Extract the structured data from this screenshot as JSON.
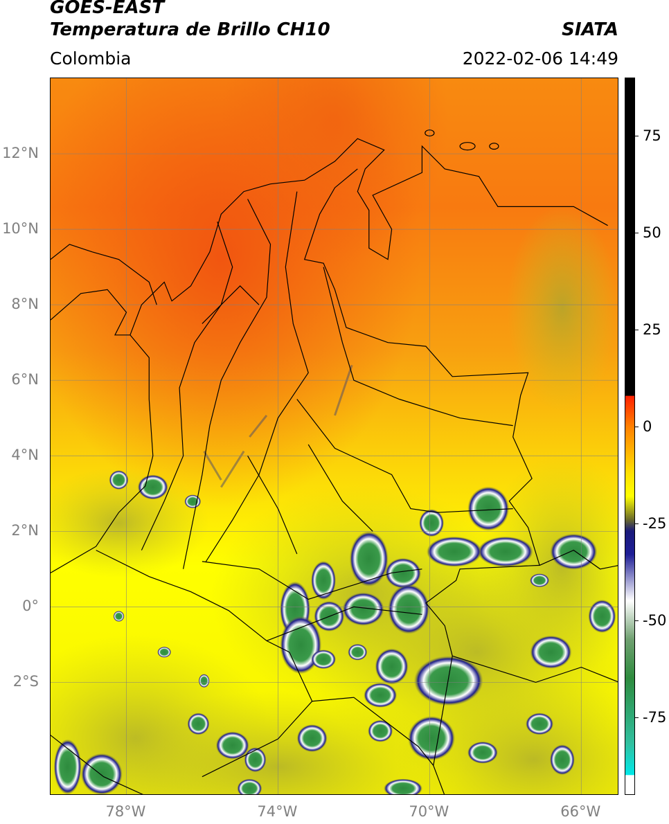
{
  "header": {
    "line1": "GOES-EAST",
    "line2": "Temperatura de Brillo CH10",
    "region": "Colombia",
    "org": "SIATA",
    "datetime": "2022-02-06 14:49"
  },
  "map": {
    "extent": {
      "lon_min": -80.0,
      "lon_max": -65.0,
      "lat_min": -5.0,
      "lat_max": 14.0
    },
    "lat_ticks": [
      {
        "value": 12,
        "label": "12°N"
      },
      {
        "value": 10,
        "label": "10°N"
      },
      {
        "value": 8,
        "label": "8°N"
      },
      {
        "value": 6,
        "label": "6°N"
      },
      {
        "value": 4,
        "label": "4°N"
      },
      {
        "value": 2,
        "label": "2°N"
      },
      {
        "value": 0,
        "label": "0°"
      },
      {
        "value": -2,
        "label": "2°S"
      }
    ],
    "lon_ticks": [
      {
        "value": -78,
        "label": "78°W"
      },
      {
        "value": -74,
        "label": "74°W"
      },
      {
        "value": -70,
        "label": "70°W"
      },
      {
        "value": -66,
        "label": "66°W"
      }
    ],
    "colors": {
      "orange_red": "#f06010",
      "orange": "#f89a10",
      "yellow": "#ffff00",
      "olive": "#b8b820",
      "navy": "#1a1a7a",
      "white": "#ffffff",
      "green": "#2e8b3e"
    }
  },
  "colorbar": {
    "range": [
      -95,
      90
    ],
    "stops": [
      {
        "value": 90,
        "color": "#000000"
      },
      {
        "value": 8,
        "color": "#000000"
      },
      {
        "value": 7.9,
        "color": "#ff2000"
      },
      {
        "value": 0,
        "color": "#ff8000"
      },
      {
        "value": -12,
        "color": "#ffe000"
      },
      {
        "value": -18,
        "color": "#ffff00"
      },
      {
        "value": -24,
        "color": "#6b6b2a"
      },
      {
        "value": -27,
        "color": "#1a1a7a"
      },
      {
        "value": -33,
        "color": "#1e1e96"
      },
      {
        "value": -45,
        "color": "#ffffff"
      },
      {
        "value": -55,
        "color": "#6fa070"
      },
      {
        "value": -65,
        "color": "#2e8b3e"
      },
      {
        "value": -82,
        "color": "#30c0a0"
      },
      {
        "value": -90,
        "color": "#00e8e8"
      },
      {
        "value": -90.1,
        "color": "#ffffff"
      },
      {
        "value": -95,
        "color": "#ffffff"
      }
    ],
    "ticks": [
      {
        "value": 75,
        "label": "75"
      },
      {
        "value": 50,
        "label": "50"
      },
      {
        "value": 25,
        "label": "25"
      },
      {
        "value": 0,
        "label": "0"
      },
      {
        "value": -25,
        "label": "-25"
      },
      {
        "value": -50,
        "label": "-50"
      },
      {
        "value": -75,
        "label": "-75"
      }
    ]
  }
}
